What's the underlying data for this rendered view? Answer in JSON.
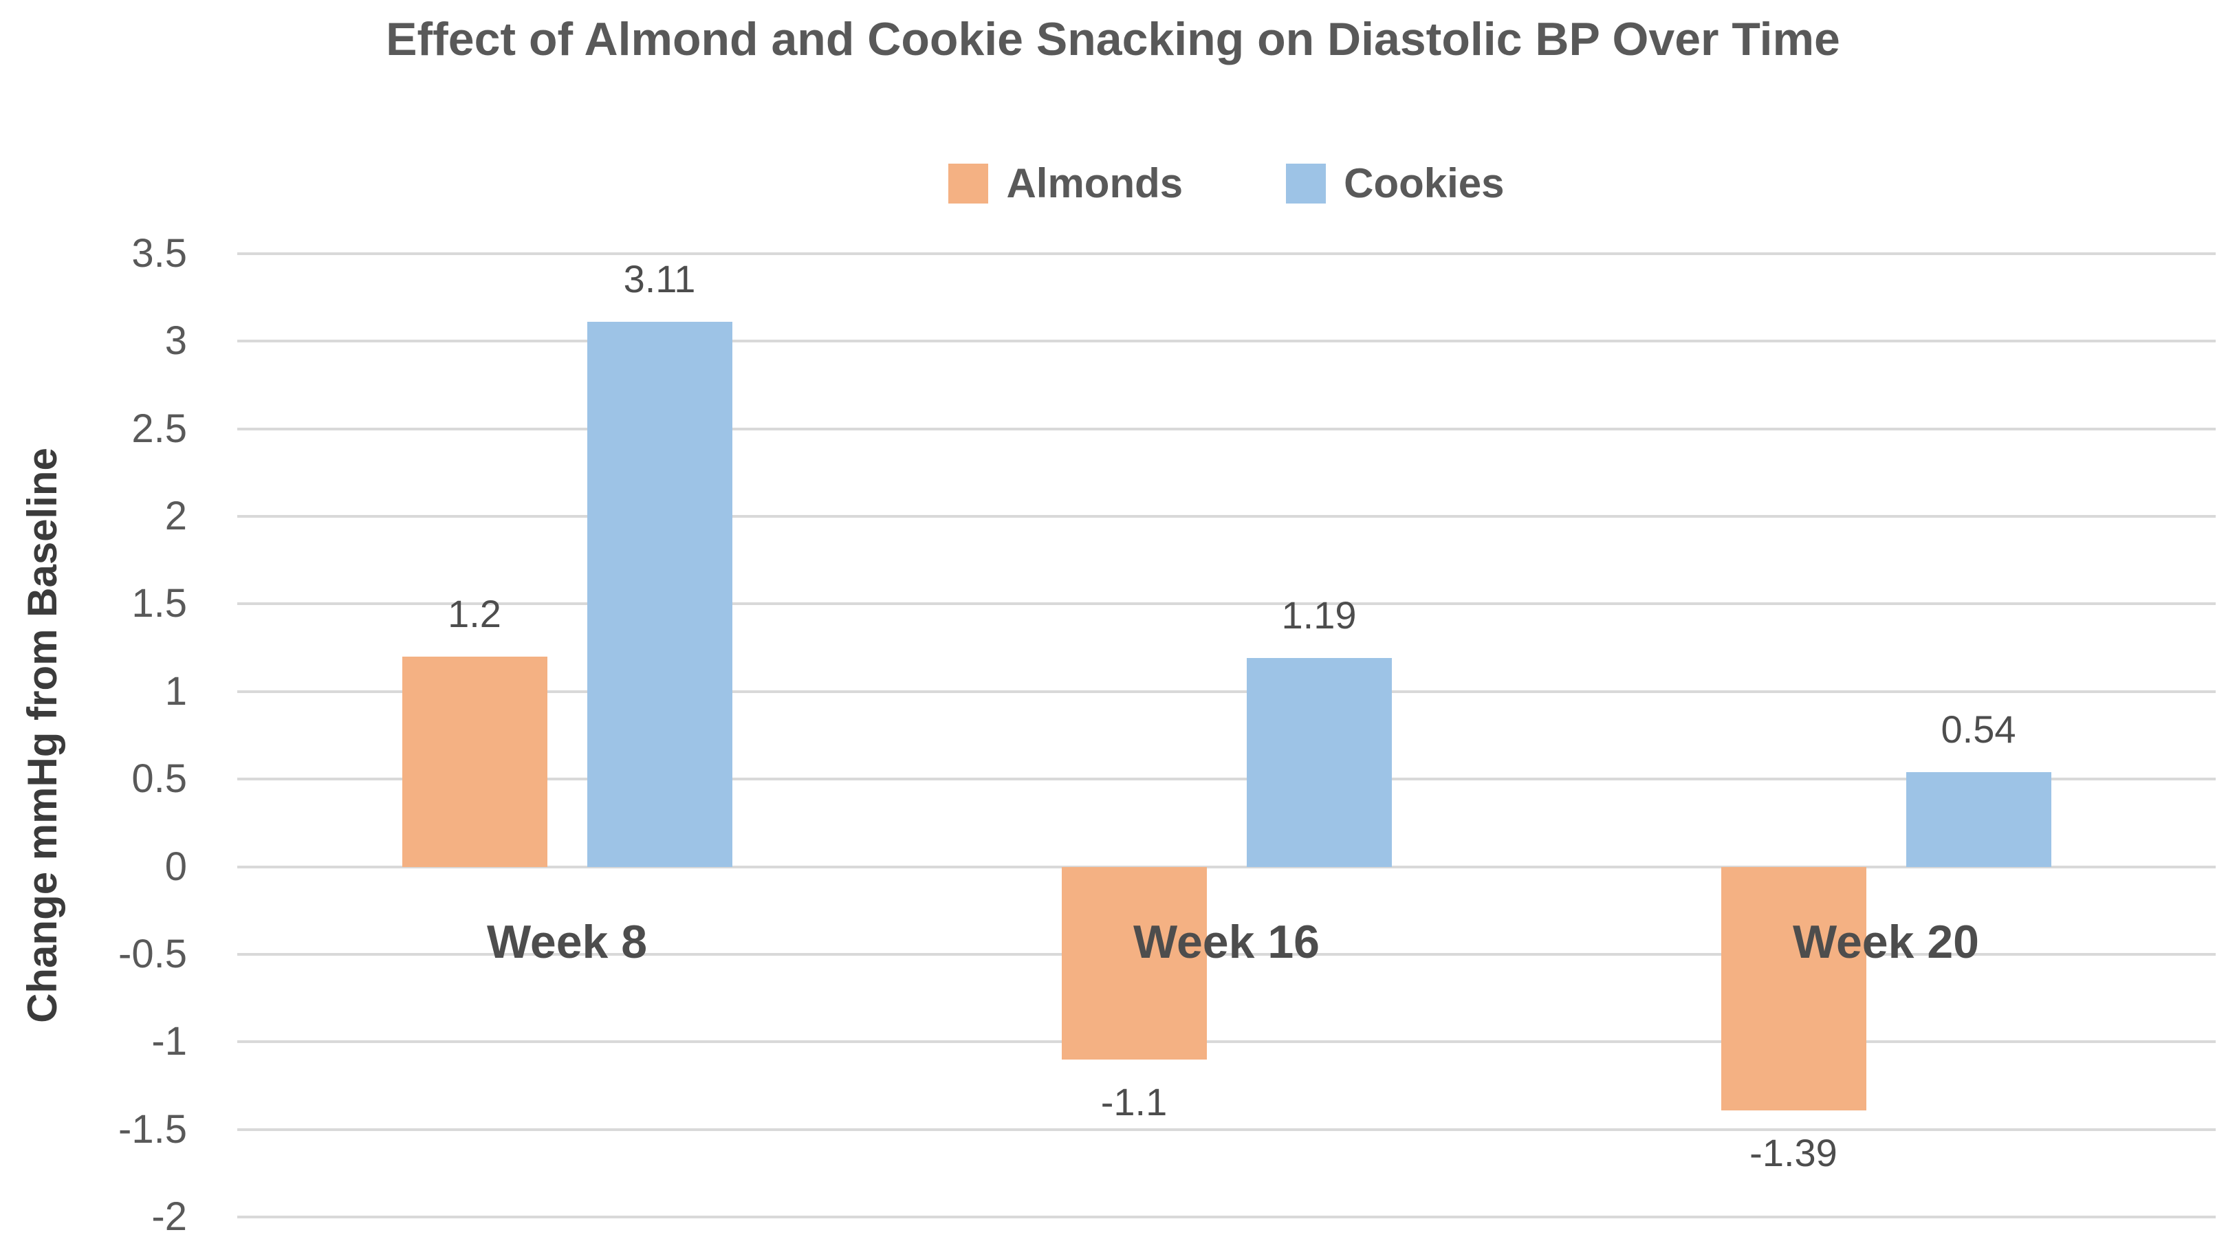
{
  "chart_data": {
    "type": "bar",
    "title": "Effect of Almond and Cookie Snacking on Diastolic BP Over Time",
    "ylabel": "Change mmHg from Baseline",
    "xlabel": "",
    "categories": [
      "Week 8",
      "Week 16",
      "Week 20"
    ],
    "series": [
      {
        "name": "Almonds",
        "color": "#F4B183",
        "values": [
          1.2,
          -1.1,
          -1.39
        ],
        "labels": [
          "1.2",
          "-1.1",
          "-1.39"
        ]
      },
      {
        "name": "Cookies",
        "color": "#9DC3E6",
        "values": [
          3.11,
          1.19,
          0.54
        ],
        "labels": [
          "3.11",
          "1.19",
          "0.54"
        ]
      }
    ],
    "ylim": [
      -2,
      3.5
    ],
    "ytick_step": 0.5,
    "ytick_labels": [
      "3.5",
      "3",
      "2.5",
      "2",
      "1.5",
      "1",
      "0.5",
      "0",
      "-0.5",
      "-1",
      "-1.5",
      "-2"
    ],
    "grid": true,
    "legend_position": "top-center",
    "data_labels_shown": true,
    "colors": {
      "gridline": "#D9D9D9",
      "title_text": "#595959",
      "tick_text": "#595959",
      "category_text": "#4d4d4d",
      "data_label_text": "#4d4d4d",
      "axis_title_text": "#3b3b3b",
      "background": "#FFFFFF"
    }
  }
}
